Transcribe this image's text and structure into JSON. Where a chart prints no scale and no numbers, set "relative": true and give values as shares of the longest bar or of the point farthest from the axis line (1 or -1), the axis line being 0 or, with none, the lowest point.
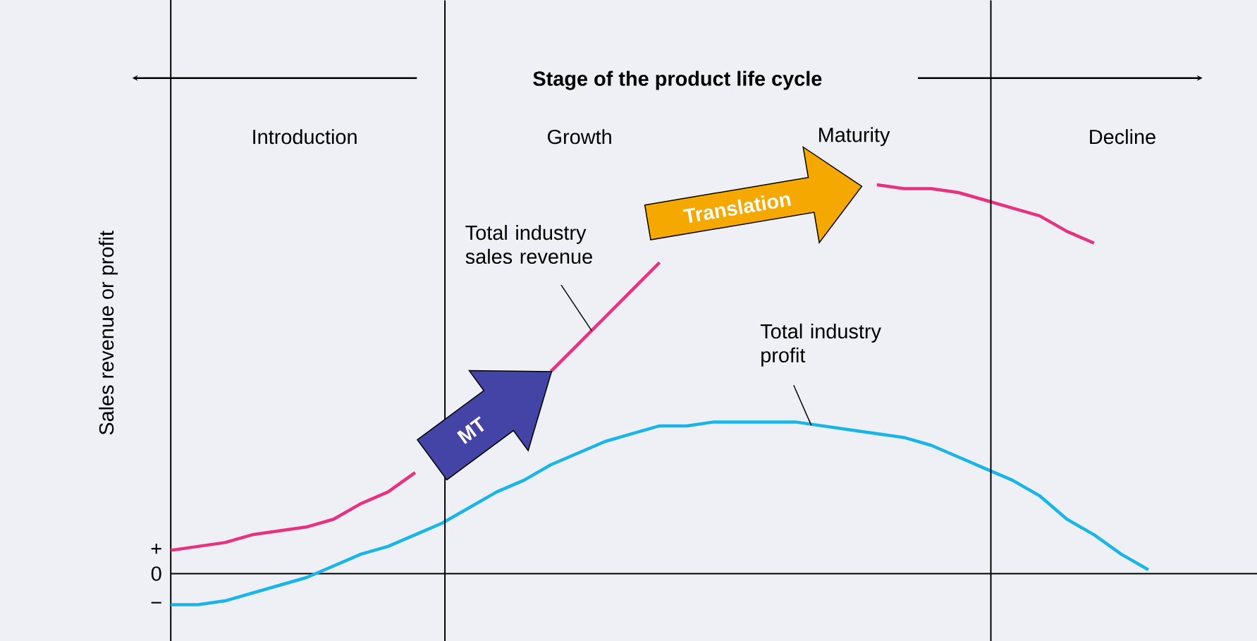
{
  "chart_data": {
    "type": "line",
    "relative": true,
    "title": "Stage of the product life cycle",
    "ylabel": "Sales revenue or profit",
    "categories": [
      null,
      null,
      null,
      null,
      null,
      null,
      null,
      null,
      null,
      null,
      null,
      null,
      null,
      null,
      null,
      null,
      null,
      null,
      null,
      null,
      null,
      null,
      null,
      null,
      null,
      null,
      null,
      null,
      null,
      null,
      null,
      null,
      null,
      null,
      null,
      null,
      null,
      null,
      null,
      null,
      null
    ],
    "series": [
      {
        "name": "Total industry sales revenue",
        "color": "#e8327f",
        "values": [
          0.06,
          0.07,
          0.08,
          0.1,
          0.11,
          0.12,
          0.14,
          0.18,
          0.21,
          0.26,
          null,
          null,
          null,
          null,
          0.52,
          0.59,
          0.66,
          0.73,
          0.8,
          null,
          null,
          null,
          null,
          null,
          null,
          null,
          1.0,
          0.99,
          0.99,
          0.98,
          0.96,
          0.94,
          0.92,
          0.88,
          0.85,
          null,
          null,
          null,
          null,
          null,
          null
        ]
      },
      {
        "name": "Total industry profit",
        "color": "#19b5e8",
        "values": [
          -0.08,
          -0.08,
          -0.07,
          -0.05,
          -0.03,
          -0.01,
          0.02,
          0.05,
          0.07,
          0.1,
          0.13,
          0.17,
          0.21,
          0.24,
          0.28,
          0.31,
          0.34,
          0.36,
          0.38,
          0.38,
          0.39,
          0.39,
          0.39,
          0.39,
          0.38,
          0.37,
          0.36,
          0.35,
          0.33,
          0.3,
          0.27,
          0.24,
          0.2,
          0.14,
          0.1,
          0.05,
          0.01,
          null,
          null,
          null,
          null
        ]
      }
    ],
    "annotations": [
      "Introduction",
      "Growth",
      "Maturity",
      "Decline",
      "+",
      "0",
      "−",
      "MT",
      "Translation"
    ]
  }
}
